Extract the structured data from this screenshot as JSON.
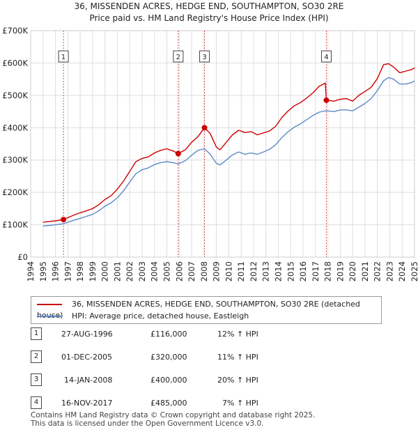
{
  "chart_data": {
    "type": "line",
    "title": "36, MISSENDEN ACRES, HEDGE END, SOUTHAMPTON, SO30 2RE",
    "subtitle": "Price paid vs. HM Land Registry's House Price Index (HPI)",
    "xlabel": "",
    "ylabel": "",
    "xlim": [
      1994,
      2025
    ],
    "ylim": [
      0,
      700000
    ],
    "y_ticks": [
      {
        "value": 0,
        "label": "£0"
      },
      {
        "value": 100000,
        "label": "£100K"
      },
      {
        "value": 200000,
        "label": "£200K"
      },
      {
        "value": 300000,
        "label": "£300K"
      },
      {
        "value": 400000,
        "label": "£400K"
      },
      {
        "value": 500000,
        "label": "£500K"
      },
      {
        "value": 600000,
        "label": "£600K"
      },
      {
        "value": 700000,
        "label": "£700K"
      }
    ],
    "x_ticks": [
      "1994",
      "1995",
      "1996",
      "1997",
      "1998",
      "1999",
      "2000",
      "2001",
      "2002",
      "2003",
      "2004",
      "2005",
      "2006",
      "2007",
      "2008",
      "2009",
      "2010",
      "2011",
      "2012",
      "2013",
      "2014",
      "2015",
      "2016",
      "2017",
      "2018",
      "2019",
      "2020",
      "2021",
      "2022",
      "2023",
      "2024",
      "2025"
    ],
    "grid": true,
    "series": [
      {
        "name": "36, MISSENDEN ACRES, HEDGE END, SOUTHAMPTON, SO30 2RE (detached house)",
        "color": "#cc0000",
        "x": [
          1995.0,
          1995.5,
          1996.0,
          1996.65,
          1997.0,
          1997.5,
          1998.0,
          1998.5,
          1999.0,
          1999.5,
          2000.0,
          2000.5,
          2001.0,
          2001.5,
          2002.0,
          2002.5,
          2003.0,
          2003.5,
          2004.0,
          2004.5,
          2005.0,
          2005.5,
          2005.92,
          2006.5,
          2007.0,
          2007.5,
          2008.04,
          2008.5,
          2009.0,
          2009.3,
          2009.8,
          2010.3,
          2010.8,
          2011.3,
          2011.8,
          2012.3,
          2012.8,
          2013.3,
          2013.8,
          2014.3,
          2014.8,
          2015.3,
          2015.8,
          2016.3,
          2016.8,
          2017.3,
          2017.8,
          2017.88,
          2018.5,
          2019.0,
          2019.5,
          2020.0,
          2020.5,
          2021.0,
          2021.5,
          2022.0,
          2022.5,
          2022.9,
          2023.3,
          2023.8,
          2024.3,
          2024.8,
          2025.0
        ],
        "values": [
          108000,
          110000,
          112000,
          116000,
          122000,
          130000,
          137000,
          143000,
          150000,
          162000,
          178000,
          190000,
          210000,
          235000,
          265000,
          295000,
          305000,
          310000,
          322000,
          330000,
          335000,
          328000,
          320000,
          332000,
          355000,
          372000,
          400000,
          382000,
          340000,
          332000,
          355000,
          378000,
          392000,
          385000,
          388000,
          378000,
          384000,
          390000,
          405000,
          432000,
          452000,
          468000,
          478000,
          492000,
          508000,
          528000,
          538000,
          485000,
          482000,
          488000,
          490000,
          482000,
          500000,
          512000,
          525000,
          552000,
          595000,
          598000,
          588000,
          570000,
          575000,
          580000,
          585000
        ]
      },
      {
        "name": "HPI: Average price, detached house, Eastleigh",
        "color": "#5b8ac6",
        "x": [
          1995.0,
          1995.5,
          1996.0,
          1996.65,
          1997.0,
          1997.5,
          1998.0,
          1998.5,
          1999.0,
          1999.5,
          2000.0,
          2000.5,
          2001.0,
          2001.5,
          2002.0,
          2002.5,
          2003.0,
          2003.5,
          2004.0,
          2004.5,
          2005.0,
          2005.5,
          2005.92,
          2006.5,
          2007.0,
          2007.5,
          2008.04,
          2008.5,
          2009.0,
          2009.3,
          2009.8,
          2010.3,
          2010.8,
          2011.3,
          2011.8,
          2012.3,
          2012.8,
          2013.3,
          2013.8,
          2014.3,
          2014.8,
          2015.3,
          2015.8,
          2016.3,
          2016.8,
          2017.3,
          2017.8,
          2017.88,
          2018.5,
          2019.0,
          2019.5,
          2020.0,
          2020.5,
          2021.0,
          2021.5,
          2022.0,
          2022.5,
          2022.9,
          2023.3,
          2023.8,
          2024.3,
          2024.8,
          2025.0
        ],
        "values": [
          96000,
          98000,
          100000,
          103000,
          108000,
          114000,
          120000,
          126000,
          132000,
          143000,
          157000,
          168000,
          183000,
          205000,
          232000,
          258000,
          270000,
          276000,
          286000,
          292000,
          295000,
          292000,
          288000,
          298000,
          315000,
          330000,
          335000,
          318000,
          290000,
          285000,
          300000,
          316000,
          325000,
          318000,
          322000,
          318000,
          325000,
          333000,
          348000,
          370000,
          388000,
          402000,
          412000,
          425000,
          438000,
          448000,
          452000,
          452000,
          450000,
          455000,
          455000,
          452000,
          463000,
          475000,
          490000,
          515000,
          545000,
          555000,
          550000,
          535000,
          535000,
          540000,
          545000
        ]
      }
    ],
    "sales": [
      {
        "id": "1",
        "x": 1996.65,
        "value": 116000
      },
      {
        "id": "2",
        "x": 2005.92,
        "value": 320000
      },
      {
        "id": "3",
        "x": 2008.04,
        "value": 400000
      },
      {
        "id": "4",
        "x": 2017.88,
        "value": 485000
      }
    ]
  },
  "legend": [
    {
      "label": "36, MISSENDEN ACRES, HEDGE END, SOUTHAMPTON, SO30 2RE (detached house)",
      "color": "#cc0000"
    },
    {
      "label": "HPI: Average price, detached house, Eastleigh",
      "color": "#5b8ac6"
    }
  ],
  "sales_table": [
    {
      "num": "1",
      "date": "27-AUG-1996",
      "price": "£116,000",
      "hpi": "12% ↑ HPI"
    },
    {
      "num": "2",
      "date": "01-DEC-2005",
      "price": "£320,000",
      "hpi": "11% ↑ HPI"
    },
    {
      "num": "3",
      "date": "14-JAN-2008",
      "price": "£400,000",
      "hpi": "20% ↑ HPI"
    },
    {
      "num": "4",
      "date": "16-NOV-2017",
      "price": "£485,000",
      "hpi": "7% ↑ HPI"
    }
  ],
  "footer": {
    "line1": "Contains HM Land Registry data © Crown copyright and database right 2025.",
    "line2": "This data is licensed under the Open Government Licence v3.0."
  }
}
